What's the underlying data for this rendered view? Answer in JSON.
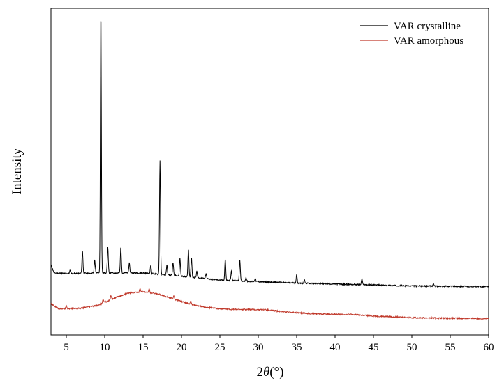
{
  "chart_data": {
    "type": "line",
    "title": "",
    "xlabel": "2θ(°)",
    "xlabel_parts": {
      "prefix": "2",
      "theta": "θ",
      "unit": "(°)"
    },
    "ylabel": "Intensity",
    "xlim": [
      3,
      60
    ],
    "ylim": [
      0,
      1.0
    ],
    "x_ticks": [
      5,
      10,
      15,
      20,
      25,
      30,
      35,
      40,
      45,
      50,
      55,
      60
    ],
    "y_ticks_shown": false,
    "grid": false,
    "legend_position": "top-right",
    "colors": {
      "VAR crystalline": "#000000",
      "VAR amorphous": "#c0392b"
    },
    "series": [
      {
        "name": "VAR crystalline",
        "color": "#000000",
        "baseline": [
          [
            3,
            0.215
          ],
          [
            3.4,
            0.19
          ],
          [
            5,
            0.188
          ],
          [
            10,
            0.19
          ],
          [
            15,
            0.19
          ],
          [
            20,
            0.18
          ],
          [
            25,
            0.168
          ],
          [
            30,
            0.163
          ],
          [
            35,
            0.159
          ],
          [
            40,
            0.156
          ],
          [
            45,
            0.153
          ],
          [
            50,
            0.15
          ],
          [
            55,
            0.149
          ],
          [
            60,
            0.148
          ]
        ],
        "peaks": [
          {
            "x": 5.5,
            "h": 0.01
          },
          {
            "x": 7.1,
            "h": 0.07
          },
          {
            "x": 8.7,
            "h": 0.04
          },
          {
            "x": 9.5,
            "h": 0.81
          },
          {
            "x": 10.4,
            "h": 0.08
          },
          {
            "x": 12.1,
            "h": 0.08
          },
          {
            "x": 13.2,
            "h": 0.03
          },
          {
            "x": 16.0,
            "h": 0.025
          },
          {
            "x": 17.2,
            "h": 0.35
          },
          {
            "x": 18.1,
            "h": 0.03
          },
          {
            "x": 18.9,
            "h": 0.04
          },
          {
            "x": 19.8,
            "h": 0.055
          },
          {
            "x": 20.9,
            "h": 0.085
          },
          {
            "x": 21.3,
            "h": 0.06
          },
          {
            "x": 22.0,
            "h": 0.02
          },
          {
            "x": 23.2,
            "h": 0.015
          },
          {
            "x": 25.7,
            "h": 0.065
          },
          {
            "x": 26.5,
            "h": 0.03
          },
          {
            "x": 27.6,
            "h": 0.065
          },
          {
            "x": 28.4,
            "h": 0.012
          },
          {
            "x": 29.6,
            "h": 0.01
          },
          {
            "x": 35.0,
            "h": 0.025
          },
          {
            "x": 36.0,
            "h": 0.01
          },
          {
            "x": 43.5,
            "h": 0.018
          },
          {
            "x": 52.8,
            "h": 0.008
          }
        ]
      },
      {
        "name": "VAR amorphous",
        "color": "#c0392b",
        "baseline": [
          [
            3,
            0.095
          ],
          [
            4,
            0.08
          ],
          [
            5,
            0.08
          ],
          [
            7,
            0.082
          ],
          [
            9,
            0.09
          ],
          [
            11,
            0.11
          ],
          [
            13,
            0.128
          ],
          [
            15,
            0.132
          ],
          [
            17,
            0.125
          ],
          [
            19,
            0.11
          ],
          [
            21,
            0.095
          ],
          [
            23,
            0.085
          ],
          [
            25,
            0.08
          ],
          [
            27,
            0.078
          ],
          [
            29,
            0.078
          ],
          [
            31,
            0.077
          ],
          [
            33,
            0.072
          ],
          [
            35,
            0.068
          ],
          [
            37,
            0.065
          ],
          [
            40,
            0.063
          ],
          [
            42,
            0.063
          ],
          [
            45,
            0.058
          ],
          [
            50,
            0.053
          ],
          [
            55,
            0.051
          ],
          [
            60,
            0.05
          ]
        ],
        "peaks": [
          {
            "x": 5.0,
            "h": 0.012
          },
          {
            "x": 9.8,
            "h": 0.012
          },
          {
            "x": 10.8,
            "h": 0.012
          },
          {
            "x": 14.6,
            "h": 0.012
          },
          {
            "x": 15.8,
            "h": 0.014
          },
          {
            "x": 19.0,
            "h": 0.01
          },
          {
            "x": 21.2,
            "h": 0.01
          }
        ]
      }
    ]
  }
}
